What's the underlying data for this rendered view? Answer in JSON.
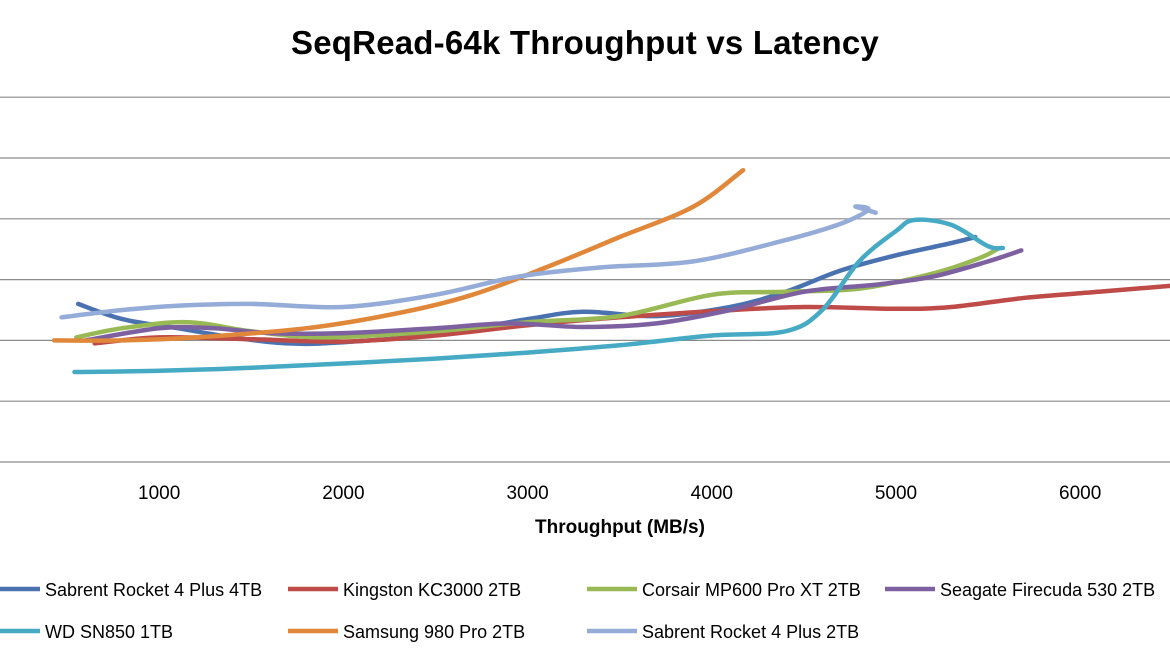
{
  "chart_data": {
    "type": "line",
    "title": "SeqRead-64k Throughput vs Latency",
    "xlabel": "Throughput (MB/s)",
    "ylabel": "",
    "xticks": [
      "1000",
      "2000",
      "3000",
      "4000",
      "5000",
      "6000"
    ],
    "legend_position": "bottom",
    "grid": true,
    "series": [
      {
        "name": "Sabrent Rocket 4 Plus 4TB",
        "color": "#4a72b0",
        "points": [
          [
            560,
            2.6
          ],
          [
            800,
            2.35
          ],
          [
            1100,
            2.2
          ],
          [
            1400,
            2.05
          ],
          [
            1700,
            1.95
          ],
          [
            2000,
            1.97
          ],
          [
            2500,
            2.1
          ],
          [
            3000,
            2.35
          ],
          [
            3300,
            2.47
          ],
          [
            3700,
            2.4
          ],
          [
            4100,
            2.55
          ],
          [
            4400,
            2.8
          ],
          [
            4700,
            3.15
          ],
          [
            5000,
            3.4
          ],
          [
            5300,
            3.6
          ],
          [
            5430,
            3.7
          ]
        ]
      },
      {
        "name": "Kingston KC3000 2TB",
        "color": "#be4b48",
        "points": [
          [
            650,
            1.95
          ],
          [
            1000,
            2.05
          ],
          [
            1500,
            2.02
          ],
          [
            2000,
            1.98
          ],
          [
            2500,
            2.08
          ],
          [
            3000,
            2.25
          ],
          [
            3500,
            2.38
          ],
          [
            4000,
            2.48
          ],
          [
            4500,
            2.55
          ],
          [
            5000,
            2.52
          ],
          [
            5300,
            2.55
          ],
          [
            5700,
            2.7
          ],
          [
            6100,
            2.8
          ],
          [
            6500,
            2.9
          ]
        ]
      },
      {
        "name": "Corsair MP600 Pro XT 2TB",
        "color": "#98b954",
        "points": [
          [
            550,
            2.05
          ],
          [
            800,
            2.2
          ],
          [
            1150,
            2.3
          ],
          [
            1500,
            2.15
          ],
          [
            1900,
            2.05
          ],
          [
            2500,
            2.15
          ],
          [
            3000,
            2.3
          ],
          [
            3500,
            2.4
          ],
          [
            4000,
            2.75
          ],
          [
            4400,
            2.8
          ],
          [
            4800,
            2.85
          ],
          [
            5200,
            3.1
          ],
          [
            5450,
            3.35
          ],
          [
            5550,
            3.5
          ]
        ]
      },
      {
        "name": "Seagate Firecuda 530 2TB",
        "color": "#7d60a0",
        "points": [
          [
            600,
            2.0
          ],
          [
            1000,
            2.2
          ],
          [
            1300,
            2.2
          ],
          [
            1600,
            2.12
          ],
          [
            2000,
            2.12
          ],
          [
            2500,
            2.2
          ],
          [
            2900,
            2.28
          ],
          [
            3300,
            2.22
          ],
          [
            3700,
            2.28
          ],
          [
            4100,
            2.5
          ],
          [
            4500,
            2.8
          ],
          [
            4900,
            2.92
          ],
          [
            5200,
            3.05
          ],
          [
            5500,
            3.3
          ],
          [
            5680,
            3.48
          ]
        ]
      },
      {
        "name": "WD SN850 1TB",
        "color": "#46aac5",
        "points": [
          [
            540,
            1.48
          ],
          [
            1000,
            1.5
          ],
          [
            1500,
            1.55
          ],
          [
            2000,
            1.62
          ],
          [
            2500,
            1.7
          ],
          [
            3000,
            1.8
          ],
          [
            3500,
            1.92
          ],
          [
            4000,
            2.08
          ],
          [
            4400,
            2.15
          ],
          [
            4600,
            2.5
          ],
          [
            4800,
            3.3
          ],
          [
            5000,
            3.8
          ],
          [
            5100,
            3.98
          ],
          [
            5300,
            3.9
          ],
          [
            5500,
            3.55
          ],
          [
            5580,
            3.52
          ]
        ]
      },
      {
        "name": "Samsung 980 Pro 2TB",
        "color": "#e0873a",
        "points": [
          [
            430,
            2.0
          ],
          [
            800,
            2.0
          ],
          [
            1200,
            2.05
          ],
          [
            1800,
            2.2
          ],
          [
            2300,
            2.45
          ],
          [
            2700,
            2.75
          ],
          [
            3100,
            3.2
          ],
          [
            3500,
            3.7
          ],
          [
            3900,
            4.2
          ],
          [
            4170,
            4.8
          ]
        ]
      },
      {
        "name": "Sabrent Rocket 4 Plus 2TB",
        "color": "#94acd7",
        "points": [
          [
            470,
            2.38
          ],
          [
            800,
            2.5
          ],
          [
            1100,
            2.57
          ],
          [
            1500,
            2.6
          ],
          [
            2000,
            2.55
          ],
          [
            2500,
            2.75
          ],
          [
            2950,
            3.05
          ],
          [
            3400,
            3.2
          ],
          [
            3900,
            3.3
          ],
          [
            4400,
            3.65
          ],
          [
            4700,
            3.92
          ],
          [
            4850,
            4.15
          ],
          [
            4780,
            4.2
          ],
          [
            4890,
            4.1
          ]
        ]
      }
    ]
  }
}
